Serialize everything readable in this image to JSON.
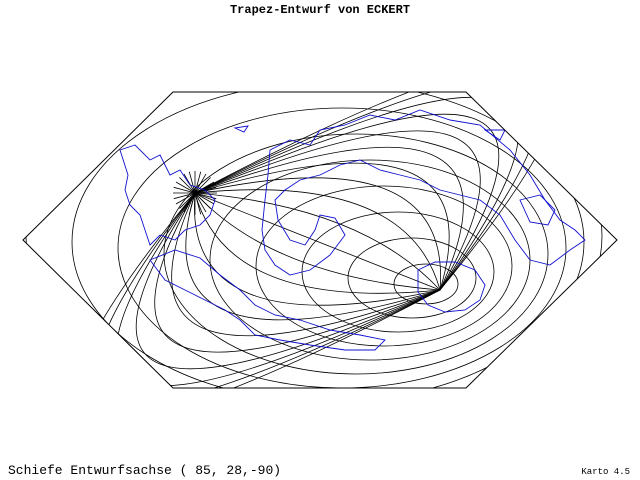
{
  "header": {
    "title": "Trapez-Entwurf von ECKERT"
  },
  "footer": {
    "caption": "Schiefe Entwurfsachse ( 85, 28,-90)",
    "version": "Karto 4.5"
  }
}
